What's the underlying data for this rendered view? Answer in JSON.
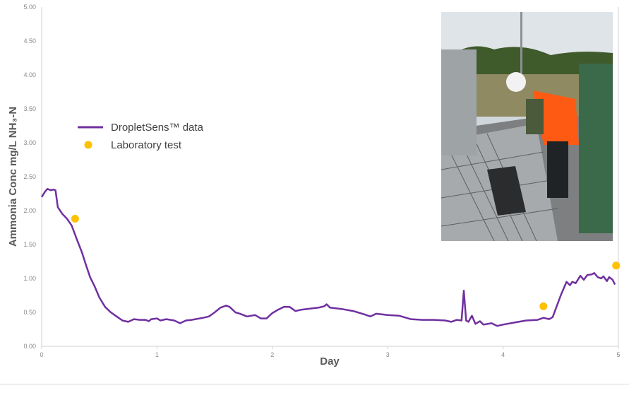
{
  "chart_data": {
    "type": "line",
    "title": "",
    "xlabel": "Day",
    "ylabel": "Ammonia Conc mg/L NH₃-N",
    "xlim": [
      0,
      5
    ],
    "ylim": [
      0,
      5
    ],
    "x_ticks": [
      "0",
      "1",
      "2",
      "3",
      "4",
      "5"
    ],
    "y_ticks": [
      "0.00",
      "0.50",
      "1.00",
      "1.50",
      "2.00",
      "2.50",
      "3.00",
      "3.50",
      "4.00",
      "4.50",
      "5.00"
    ],
    "legend_position": "left-middle",
    "grid": false,
    "series": [
      {
        "name": "DropletSens™ data",
        "type": "line",
        "color": "#7030a0",
        "x": [
          0,
          0.03,
          0.05,
          0.08,
          0.1,
          0.12,
          0.14,
          0.18,
          0.22,
          0.26,
          0.3,
          0.35,
          0.38,
          0.42,
          0.46,
          0.5,
          0.55,
          0.6,
          0.65,
          0.7,
          0.75,
          0.8,
          0.85,
          0.9,
          0.93,
          0.95,
          1.0,
          1.03,
          1.08,
          1.15,
          1.2,
          1.25,
          1.3,
          1.4,
          1.45,
          1.5,
          1.55,
          1.6,
          1.63,
          1.68,
          1.72,
          1.78,
          1.85,
          1.9,
          1.95,
          2.0,
          2.05,
          2.1,
          2.15,
          2.2,
          2.25,
          2.3,
          2.4,
          2.45,
          2.47,
          2.5,
          2.6,
          2.7,
          2.8,
          2.85,
          2.9,
          3.0,
          3.1,
          3.2,
          3.3,
          3.4,
          3.5,
          3.55,
          3.6,
          3.64,
          3.66,
          3.68,
          3.7,
          3.73,
          3.76,
          3.8,
          3.83,
          3.9,
          3.95,
          4.0,
          4.1,
          4.2,
          4.3,
          4.35,
          4.4,
          4.43,
          4.5,
          4.55,
          4.58,
          4.6,
          4.63,
          4.67,
          4.7,
          4.73,
          4.77,
          4.79,
          4.82,
          4.85,
          4.87,
          4.9,
          4.92,
          4.95,
          4.97
        ],
        "y": [
          2.2,
          2.28,
          2.32,
          2.3,
          2.31,
          2.3,
          2.05,
          1.95,
          1.88,
          1.78,
          1.6,
          1.38,
          1.22,
          1.02,
          0.88,
          0.72,
          0.58,
          0.5,
          0.44,
          0.38,
          0.36,
          0.4,
          0.39,
          0.39,
          0.37,
          0.4,
          0.41,
          0.38,
          0.4,
          0.38,
          0.34,
          0.38,
          0.39,
          0.42,
          0.44,
          0.5,
          0.57,
          0.6,
          0.58,
          0.5,
          0.48,
          0.44,
          0.46,
          0.41,
          0.41,
          0.49,
          0.54,
          0.58,
          0.58,
          0.52,
          0.54,
          0.55,
          0.57,
          0.59,
          0.62,
          0.57,
          0.55,
          0.52,
          0.47,
          0.44,
          0.48,
          0.46,
          0.45,
          0.4,
          0.39,
          0.39,
          0.38,
          0.36,
          0.39,
          0.38,
          0.82,
          0.38,
          0.36,
          0.45,
          0.33,
          0.37,
          0.32,
          0.34,
          0.3,
          0.32,
          0.35,
          0.38,
          0.39,
          0.42,
          0.4,
          0.43,
          0.75,
          0.95,
          0.9,
          0.95,
          0.93,
          1.04,
          0.98,
          1.05,
          1.06,
          1.08,
          1.02,
          1.0,
          1.03,
          0.96,
          1.02,
          0.98,
          0.91
        ]
      },
      {
        "name": "Laboratory test",
        "type": "scatter",
        "color": "#ffc000",
        "x": [
          0.29,
          4.35,
          4.98
        ],
        "y": [
          1.88,
          0.59,
          1.19
        ]
      }
    ]
  }
}
